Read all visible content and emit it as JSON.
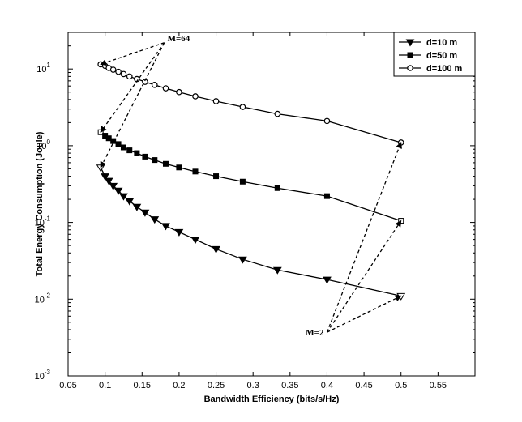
{
  "chart_data": {
    "type": "line",
    "title": "",
    "xlabel": "Bandwidth Efficiency (bits/s/Hz)",
    "ylabel": "Total Energy Consumption (Joule)",
    "xlim": [
      0.05,
      0.6
    ],
    "ylim": [
      0.001,
      30
    ],
    "yscale": "log",
    "grid": false,
    "legend_position": "top-right",
    "x_ticks": [
      "0.05",
      "0.1",
      "0.15",
      "0.2",
      "0.25",
      "0.3",
      "0.35",
      "0.4",
      "0.45",
      "0.5",
      "0.55"
    ],
    "y_ticks": [
      {
        "base": "10",
        "exp": "-3"
      },
      {
        "base": "10",
        "exp": "-2"
      },
      {
        "base": "10",
        "exp": "-1"
      },
      {
        "base": "10",
        "exp": "0"
      },
      {
        "base": "10",
        "exp": "1"
      }
    ],
    "series": [
      {
        "name": "d=10 m",
        "marker": "triangle-down",
        "x": [
          0.094,
          0.1,
          0.105,
          0.111,
          0.118,
          0.125,
          0.133,
          0.143,
          0.154,
          0.167,
          0.182,
          0.2,
          0.222,
          0.25,
          0.286,
          0.333,
          0.4,
          0.5
        ],
        "y": [
          0.52,
          0.4,
          0.35,
          0.3,
          0.26,
          0.22,
          0.19,
          0.16,
          0.135,
          0.11,
          0.09,
          0.075,
          0.06,
          0.045,
          0.033,
          0.024,
          0.018,
          0.011
        ]
      },
      {
        "name": "d=50 m",
        "marker": "square",
        "x": [
          0.094,
          0.1,
          0.105,
          0.111,
          0.118,
          0.125,
          0.133,
          0.143,
          0.154,
          0.167,
          0.182,
          0.2,
          0.222,
          0.25,
          0.286,
          0.333,
          0.4,
          0.5
        ],
        "y": [
          1.5,
          1.35,
          1.25,
          1.15,
          1.05,
          0.95,
          0.87,
          0.8,
          0.72,
          0.65,
          0.58,
          0.52,
          0.46,
          0.4,
          0.34,
          0.28,
          0.22,
          0.105
        ]
      },
      {
        "name": "d=100 m",
        "marker": "circle",
        "x": [
          0.094,
          0.1,
          0.105,
          0.111,
          0.118,
          0.125,
          0.133,
          0.143,
          0.154,
          0.167,
          0.182,
          0.2,
          0.222,
          0.25,
          0.286,
          0.333,
          0.4,
          0.5
        ],
        "y": [
          11.5,
          11.0,
          10.3,
          9.8,
          9.2,
          8.6,
          8.0,
          7.4,
          6.8,
          6.2,
          5.6,
          5.0,
          4.4,
          3.8,
          3.2,
          2.6,
          2.1,
          1.1
        ]
      }
    ],
    "annotations": [
      {
        "text": "M=64",
        "anchor": [
          0.18,
          22
        ],
        "arrows_to": [
          [
            0.094,
            11.5
          ],
          [
            0.094,
            1.5
          ],
          [
            0.094,
            0.52
          ]
        ]
      },
      {
        "text": "M=2",
        "anchor": [
          0.4,
          0.0037
        ],
        "arrows_to": [
          [
            0.5,
            1.1
          ],
          [
            0.5,
            0.105
          ],
          [
            0.5,
            0.011
          ]
        ]
      }
    ]
  }
}
